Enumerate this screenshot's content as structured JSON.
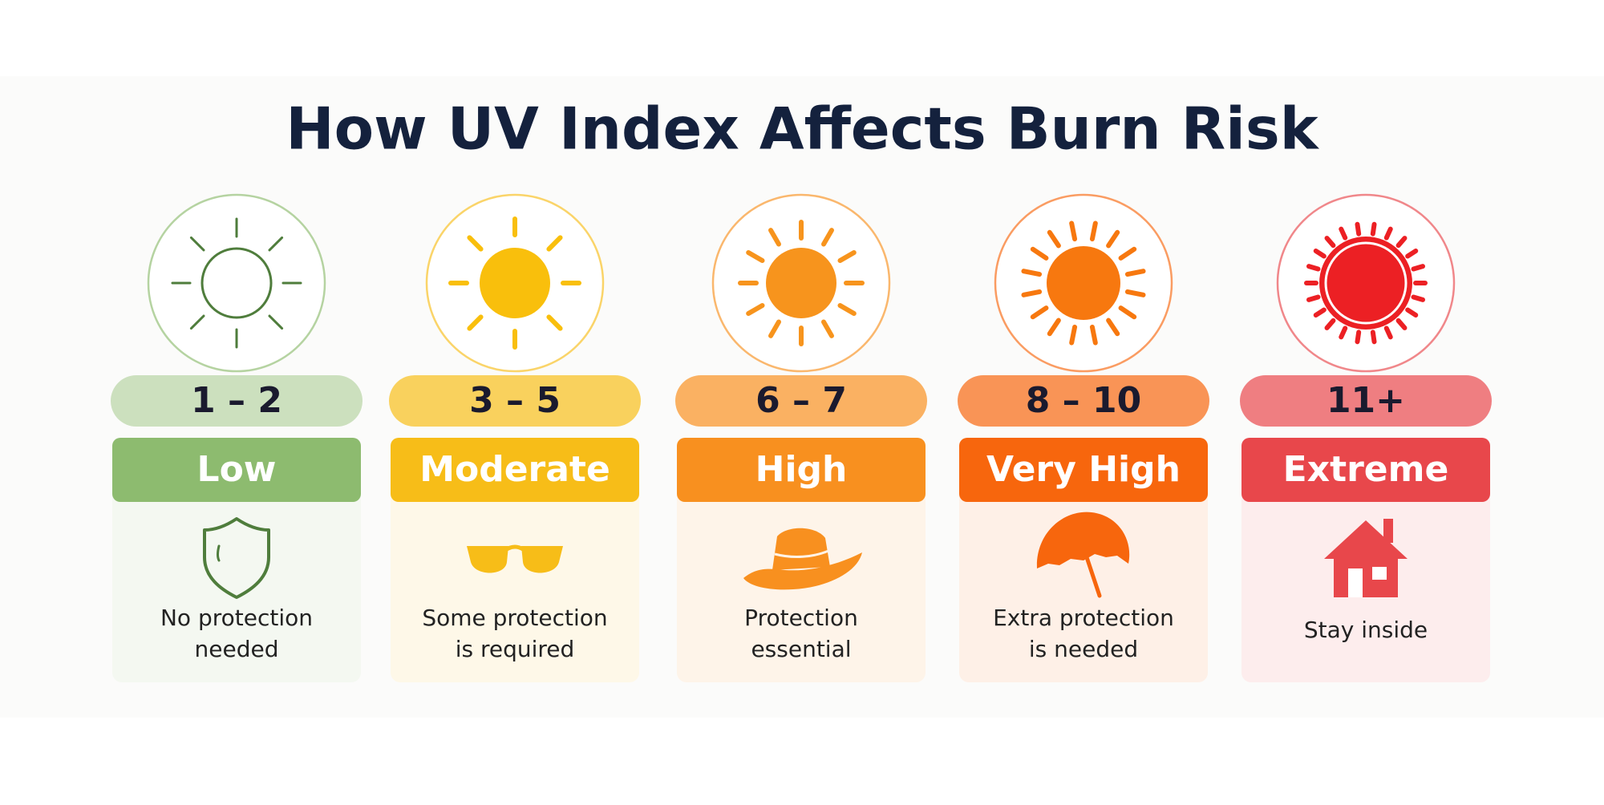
{
  "title": "How UV Index Affects Burn Risk",
  "levels": [
    {
      "range": "1 – 2",
      "label": "Low",
      "advice": [
        "No protection",
        "needed"
      ],
      "color": "#8dbb6f"
    },
    {
      "range": "3 – 5",
      "label": "Moderate",
      "advice": [
        "Some protection",
        "is required"
      ],
      "color": "#f7bd18"
    },
    {
      "range": "6 – 7",
      "label": "High",
      "advice": [
        "Protection",
        "essential"
      ],
      "color": "#f8901f"
    },
    {
      "range": "8 – 10",
      "label": "Very High",
      "advice": [
        "Extra protection",
        "is needed"
      ],
      "color": "#f7660d"
    },
    {
      "range": "11+",
      "label": "Extreme",
      "advice": [
        "Stay inside"
      ],
      "color": "#e8474b"
    }
  ]
}
